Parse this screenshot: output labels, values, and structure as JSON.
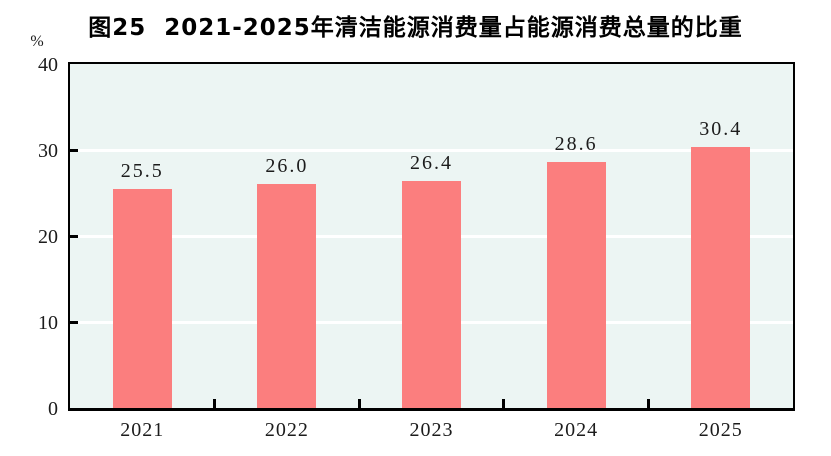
{
  "title": "图25  2021-2025年清洁能源消费量占能源消费总量的比重",
  "y_axis_unit": "%",
  "colors": {
    "bar": "#fb7e7e",
    "plot_background": "#ecf5f3",
    "gridline": "#ffffff",
    "axis": "#000000",
    "title_text": "#000000",
    "label_text": "#1c1c1c"
  },
  "chart_data": {
    "type": "bar",
    "title": "图25  2021-2025年清洁能源消费量占能源消费总量的比重",
    "categories": [
      "2021",
      "2022",
      "2023",
      "2024",
      "2025"
    ],
    "values": [
      25.5,
      26.0,
      26.4,
      28.6,
      30.4
    ],
    "data_labels": [
      "25.5",
      "26.0",
      "26.4",
      "28.6",
      "30.4"
    ],
    "xlabel": "",
    "ylabel": "%",
    "ylim": [
      0,
      40
    ],
    "yticks": [
      0,
      10,
      20,
      30,
      40
    ],
    "ytick_labels": [
      "0",
      "10",
      "20",
      "30",
      "40"
    ],
    "grid": true,
    "gridline_values": [
      10,
      20,
      30
    ],
    "legend_position": "none",
    "series_name": "清洁能源消费量占能源消费总量的比重"
  }
}
